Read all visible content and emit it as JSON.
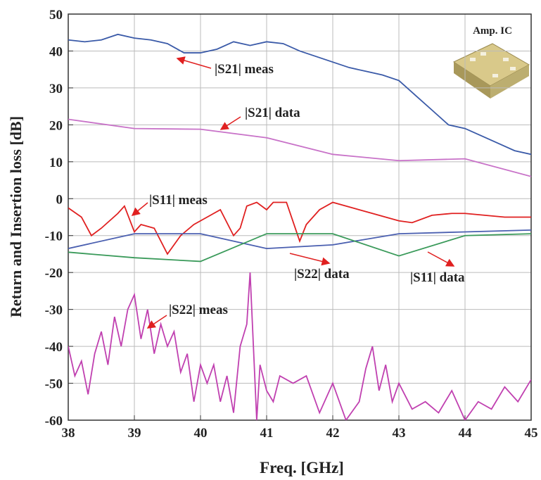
{
  "chart_data": {
    "type": "line",
    "xlabel": "Freq. [GHz]",
    "ylabel": "Return and Insertion loss [dB]",
    "xlim": [
      38,
      45
    ],
    "xticks": [
      38,
      39,
      40,
      41,
      42,
      43,
      44,
      45
    ],
    "ylim": [
      -60,
      50
    ],
    "yticks": [
      -60,
      -50,
      -40,
      -30,
      -20,
      -10,
      0,
      10,
      20,
      30,
      40,
      50
    ],
    "grid": true,
    "inset_label": "Amp. IC",
    "annotations": [
      "|S21| meas",
      "|S21| data",
      "|S11| meas",
      "|S22| data",
      "|S11| data",
      "|S22| meas"
    ],
    "series": [
      {
        "name": "|S21| meas",
        "color": "#3a5aa8",
        "x": [
          38,
          38.25,
          38.5,
          38.75,
          39,
          39.25,
          39.5,
          39.75,
          40,
          40.25,
          40.5,
          40.75,
          41,
          41.25,
          41.5,
          41.75,
          42,
          42.25,
          42.5,
          42.75,
          43,
          43.25,
          43.5,
          43.75,
          44,
          44.25,
          44.5,
          44.75,
          45
        ],
        "values": [
          43,
          42.5,
          43,
          44.5,
          43.5,
          43,
          42,
          39.5,
          39.5,
          40.5,
          42.5,
          41.5,
          42.5,
          42,
          40,
          38.5,
          37,
          35.5,
          34.5,
          33.5,
          32,
          28,
          24,
          20,
          19,
          17,
          15,
          13,
          12
        ]
      },
      {
        "name": "|S21| data",
        "color": "#c872c8",
        "x": [
          38,
          39,
          40,
          41,
          42,
          43,
          44,
          45
        ],
        "values": [
          21.5,
          19,
          18.8,
          16.5,
          12,
          10.3,
          10.8,
          6
        ]
      },
      {
        "name": "|S11| meas",
        "color": "#e02020",
        "x": [
          38,
          38.2,
          38.35,
          38.5,
          38.75,
          38.85,
          39,
          39.1,
          39.3,
          39.5,
          39.7,
          39.9,
          40.1,
          40.3,
          40.5,
          40.6,
          40.7,
          40.85,
          41,
          41.1,
          41.3,
          41.5,
          41.6,
          41.8,
          42,
          42.3,
          42.6,
          42.8,
          43,
          43.2,
          43.5,
          43.8,
          44,
          44.3,
          44.6,
          45
        ],
        "values": [
          -2.5,
          -5,
          -10,
          -8,
          -4,
          -2,
          -9,
          -7,
          -8,
          -15,
          -10,
          -7,
          -5,
          -3,
          -10,
          -8,
          -2,
          -1,
          -3,
          -1,
          -1,
          -11.5,
          -7,
          -3,
          -1,
          -2.5,
          -4,
          -5,
          -6,
          -6.5,
          -4.5,
          -4,
          -4,
          -4.5,
          -5,
          -5
        ]
      },
      {
        "name": "|S22| data",
        "color": "#4a5fb0",
        "x": [
          38,
          39,
          40,
          41,
          42,
          43,
          44,
          45
        ],
        "values": [
          -13.5,
          -9.5,
          -9.5,
          -13.5,
          -12.5,
          -9.5,
          -9,
          -8.5
        ]
      },
      {
        "name": "|S11| data",
        "color": "#3a9a5a",
        "x": [
          38,
          39,
          40,
          41,
          42,
          43,
          44,
          45
        ],
        "values": [
          -14.5,
          -16,
          -17,
          -9.5,
          -9.5,
          -15.5,
          -10,
          -9.5
        ]
      },
      {
        "name": "|S22| meas",
        "color": "#c040b0",
        "x": [
          38,
          38.1,
          38.2,
          38.3,
          38.4,
          38.5,
          38.6,
          38.7,
          38.8,
          38.9,
          39,
          39.1,
          39.2,
          39.3,
          39.4,
          39.5,
          39.6,
          39.7,
          39.8,
          39.9,
          40,
          40.1,
          40.2,
          40.3,
          40.4,
          40.5,
          40.6,
          40.7,
          40.75,
          40.8,
          40.85,
          40.9,
          41,
          41.1,
          41.2,
          41.4,
          41.6,
          41.8,
          42,
          42.2,
          42.4,
          42.5,
          42.6,
          42.7,
          42.8,
          42.9,
          43,
          43.2,
          43.4,
          43.6,
          43.8,
          44,
          44.2,
          44.4,
          44.6,
          44.8,
          45
        ],
        "values": [
          -40,
          -48,
          -44,
          -53,
          -42,
          -36,
          -45,
          -32,
          -40,
          -30,
          -26,
          -38,
          -30,
          -42,
          -34,
          -40,
          -36,
          -47,
          -42,
          -55,
          -45,
          -50,
          -45,
          -55,
          -48,
          -58,
          -40,
          -34,
          -20,
          -40,
          -60,
          -45,
          -52,
          -55,
          -48,
          -50,
          -48,
          -58,
          -50,
          -60,
          -55,
          -46,
          -40,
          -52,
          -45,
          -55,
          -50,
          -57,
          -55,
          -58,
          -52,
          -60,
          -55,
          -57,
          -51,
          -55,
          -49
        ]
      }
    ]
  }
}
